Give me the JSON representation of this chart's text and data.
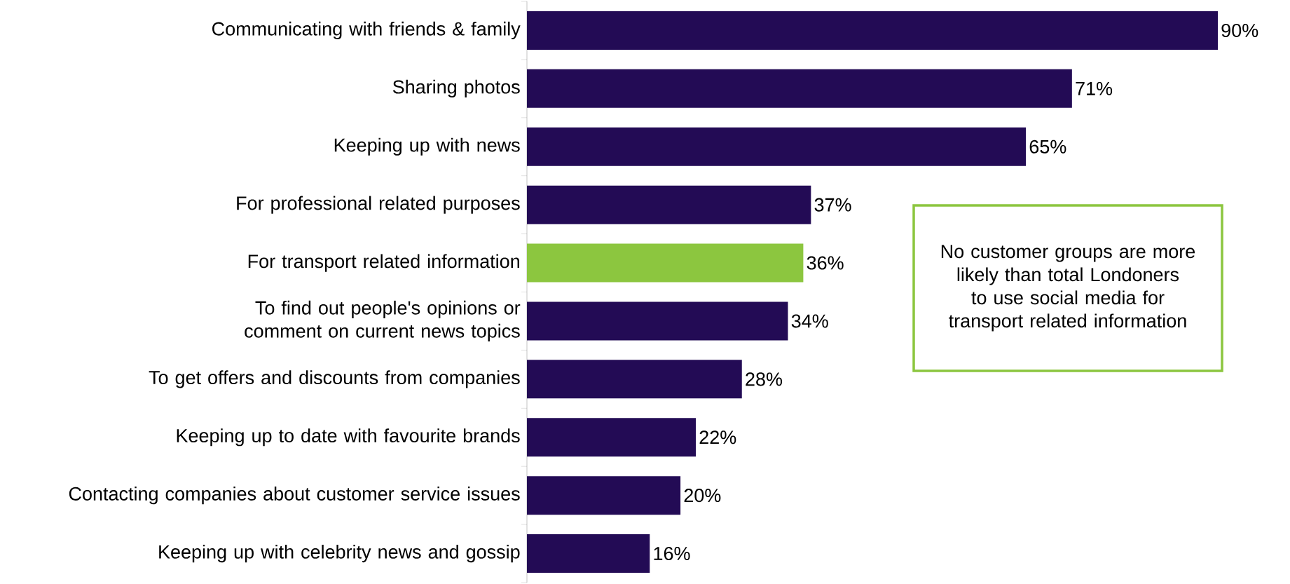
{
  "chart_data": {
    "type": "bar",
    "orientation": "horizontal",
    "categories": [
      "Communicating with friends & family",
      "Sharing photos",
      "Keeping up with news",
      "For professional related purposes",
      "For transport related information",
      "To find out people's opinions or comment on current news topics",
      "To get offers and discounts from companies",
      "Keeping up to date with favourite brands",
      "Contacting companies about customer service issues",
      "Keeping up with celebrity news and gossip"
    ],
    "values": [
      90,
      71,
      65,
      37,
      36,
      34,
      28,
      22,
      20,
      16
    ],
    "colors": [
      "#230b55",
      "#230b55",
      "#230b55",
      "#230b55",
      "#8cc63f",
      "#230b55",
      "#230b55",
      "#230b55",
      "#230b55",
      "#230b55"
    ],
    "value_labels": [
      "90%",
      "71%",
      "65%",
      "37%",
      "36%",
      "34%",
      "28%",
      "22%",
      "20%",
      "16%"
    ],
    "annotations": [
      "No customer groups are more likely than total Londoners to use social media for transport related information"
    ]
  }
}
